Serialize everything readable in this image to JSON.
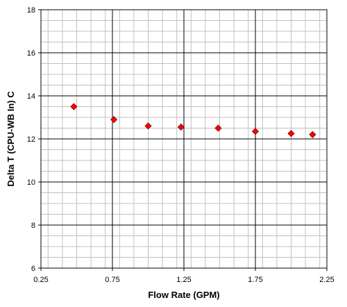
{
  "chart_data": {
    "type": "scatter",
    "title": "",
    "xlabel": "Flow Rate (GPM)",
    "ylabel": "Delta T (CPU-WB In) C",
    "xlim": [
      0.25,
      2.25
    ],
    "ylim": [
      6,
      18
    ],
    "x_major_ticks": [
      "0.25",
      "0.75",
      "1.25",
      "1.75",
      "2.25"
    ],
    "y_major_ticks": [
      "6",
      "8",
      "10",
      "12",
      "14",
      "16",
      "18"
    ],
    "x_minor_step": 0.1,
    "y_minor_step": 0.5,
    "grid": true,
    "legend": "none",
    "marker": "diamond",
    "marker_color": "#ff0000",
    "series": [
      {
        "x": [
          0.48,
          0.76,
          1.0,
          1.23,
          1.49,
          1.75,
          2.0,
          2.15
        ],
        "y": [
          13.5,
          12.9,
          12.6,
          12.55,
          12.5,
          12.35,
          12.25,
          12.2
        ]
      }
    ]
  }
}
